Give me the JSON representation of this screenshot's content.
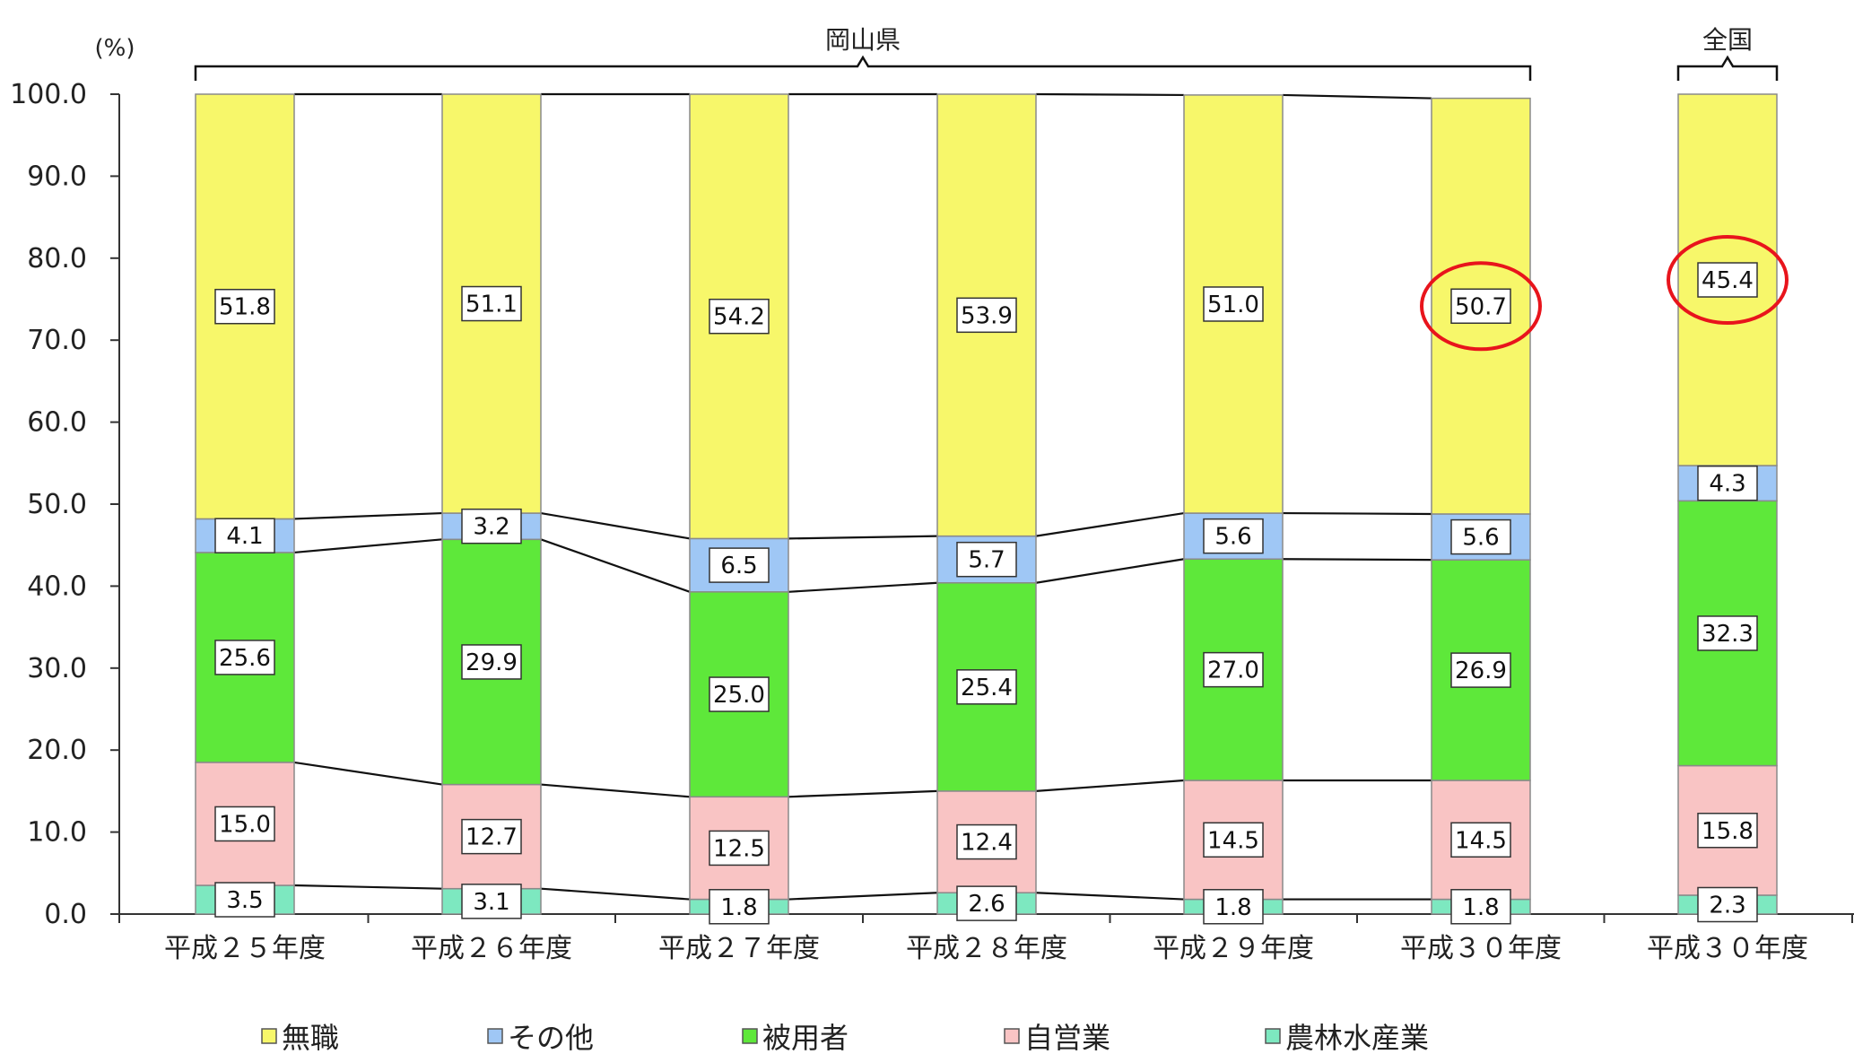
{
  "chart_data": {
    "type": "bar",
    "stacked": true,
    "unit_label": "(%)",
    "categories": [
      "平成２５年度",
      "平成２６年度",
      "平成２７年度",
      "平成２８年度",
      "平成２９年度",
      "平成３０年度",
      "平成３０年度"
    ],
    "groups": [
      {
        "label": "岡山県",
        "from": 0,
        "to": 5
      },
      {
        "label": "全国",
        "from": 6,
        "to": 6
      }
    ],
    "series": [
      {
        "name": "農林水産業",
        "color": "#7de8c0",
        "values": [
          3.5,
          3.1,
          1.8,
          2.6,
          1.8,
          1.8,
          2.3
        ]
      },
      {
        "name": "自営業",
        "color": "#f9c4c4",
        "values": [
          15.0,
          12.7,
          12.5,
          12.4,
          14.5,
          14.5,
          15.8
        ]
      },
      {
        "name": "被用者",
        "color": "#5ee83a",
        "values": [
          25.6,
          29.9,
          25.0,
          25.4,
          27.0,
          26.9,
          32.3
        ]
      },
      {
        "name": "その他",
        "color": "#9fc7f5",
        "values": [
          4.1,
          3.2,
          6.5,
          5.7,
          5.6,
          5.6,
          4.3
        ]
      },
      {
        "name": "無職",
        "color": "#f7f76a",
        "values": [
          51.8,
          51.1,
          54.2,
          53.9,
          51.0,
          50.7,
          45.4
        ]
      }
    ],
    "legend_order": [
      "無職",
      "その他",
      "被用者",
      "自営業",
      "農林水産業"
    ],
    "ylim": [
      0,
      100
    ],
    "yticks": [
      "0.0",
      "10.0",
      "20.0",
      "30.0",
      "40.0",
      "50.0",
      "60.0",
      "70.0",
      "80.0",
      "90.0",
      "100.0"
    ],
    "connector_lines": true,
    "highlighted": [
      {
        "category_index": 5,
        "series": "無職"
      },
      {
        "category_index": 6,
        "series": "無職"
      }
    ],
    "highlight_color": "#e8141c",
    "legend_position": "bottom"
  }
}
